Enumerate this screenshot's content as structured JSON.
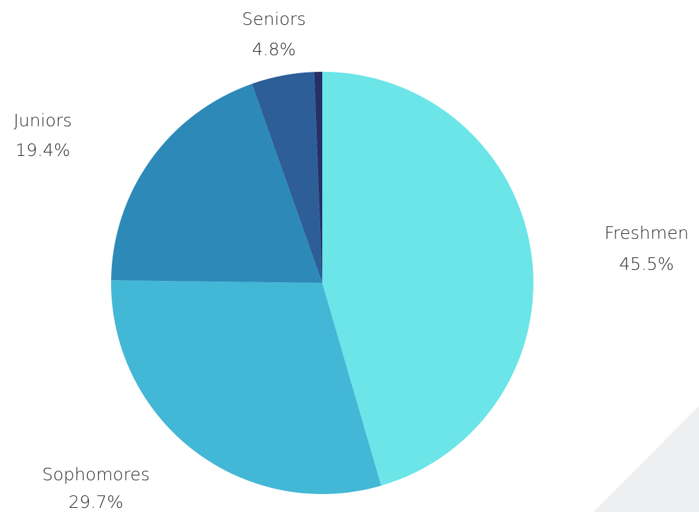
{
  "chart_data": {
    "type": "pie",
    "title": "",
    "start_angle_deg": 0,
    "direction": "clockwise",
    "slices": [
      {
        "name": "Freshmen",
        "label": "Freshmen",
        "pct_label": "45.5%",
        "value": 45.5,
        "color": "#6be5e8"
      },
      {
        "name": "Sophomores",
        "label": "Sophomores",
        "pct_label": "29.7%",
        "value": 29.7,
        "color": "#43b7d6"
      },
      {
        "name": "Juniors",
        "label": "Juniors",
        "pct_label": "19.4%",
        "value": 19.4,
        "color": "#2d8ab8"
      },
      {
        "name": "Seniors",
        "label": "Seniors",
        "pct_label": "4.8%",
        "value": 4.8,
        "color": "#2e5e98"
      },
      {
        "name": "Other",
        "label": "",
        "pct_label": "",
        "value": 0.6,
        "color": "#262f66"
      }
    ]
  },
  "background": {
    "accent_color": "#eeeff1"
  }
}
